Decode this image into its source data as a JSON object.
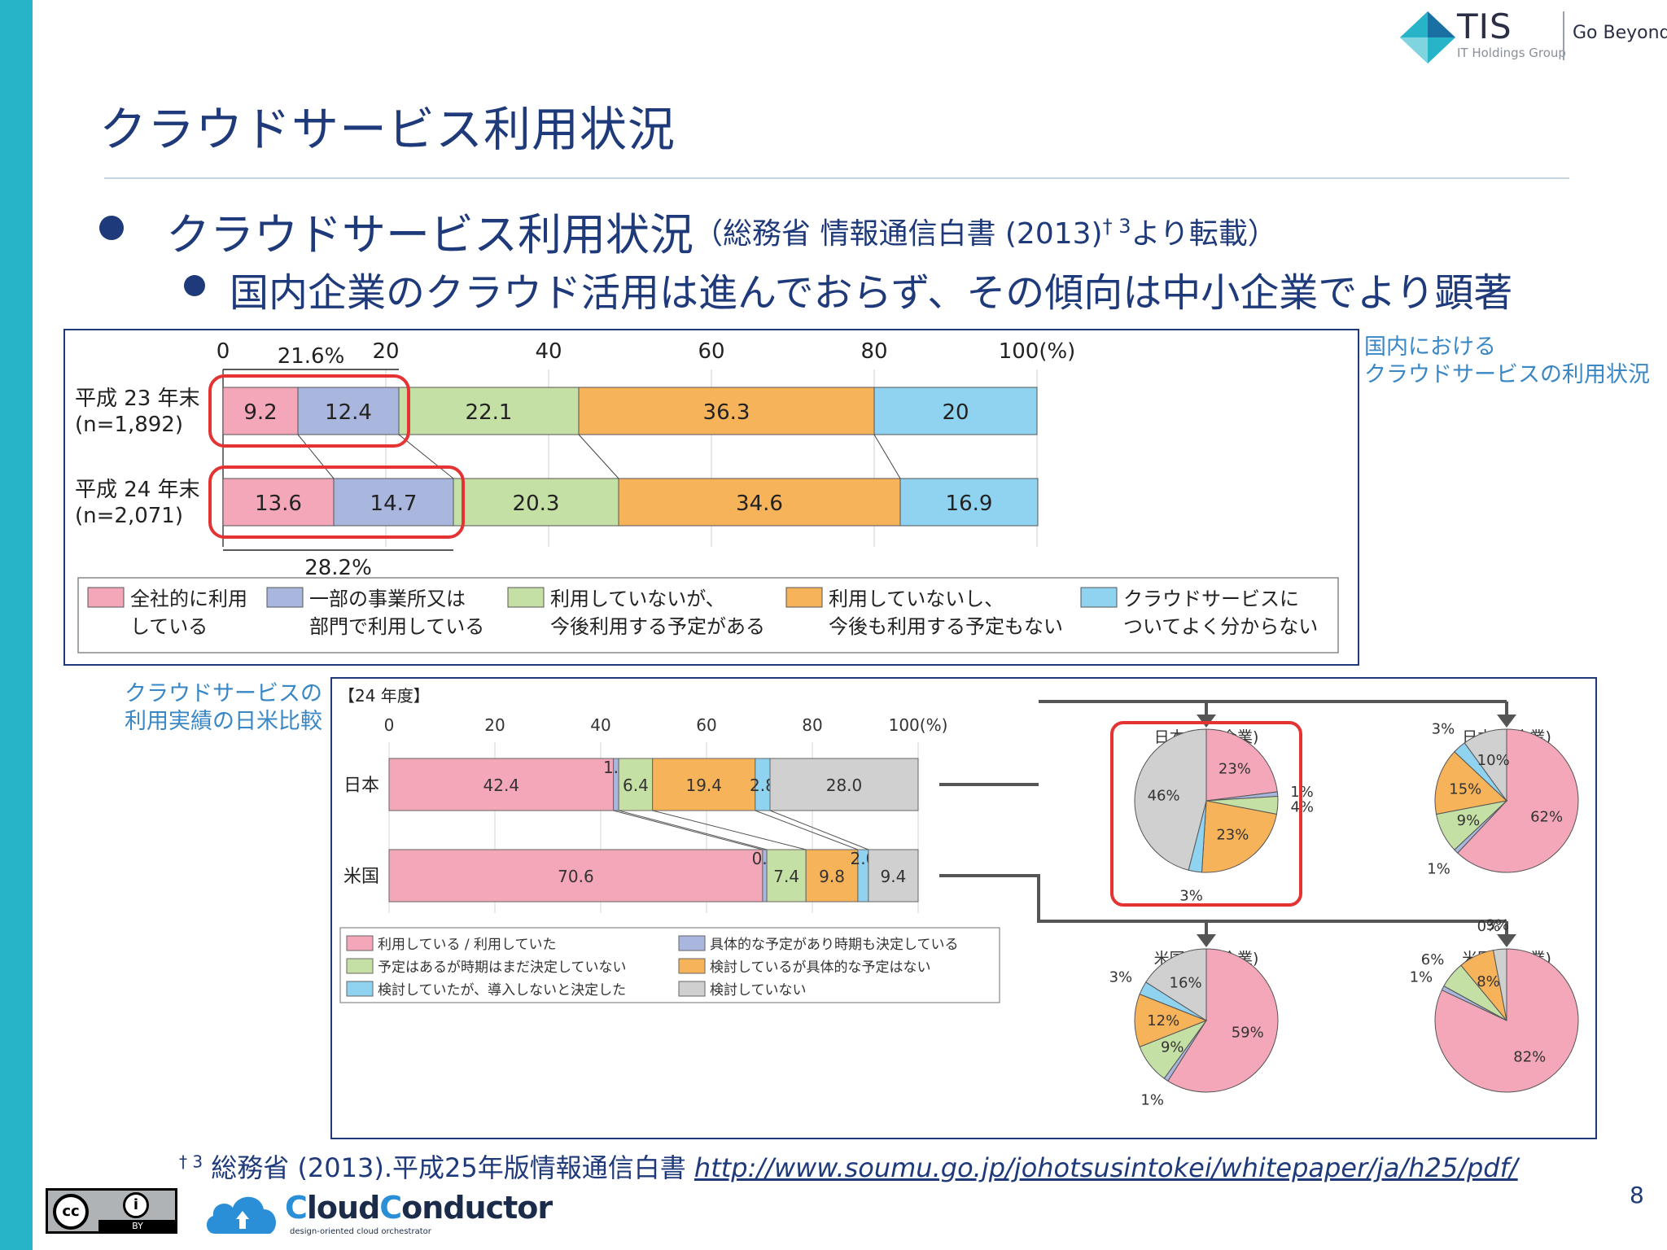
{
  "logo": {
    "brand": "TIS",
    "group": "IT Holdings Group",
    "tagline": "Go Beyond"
  },
  "title": "クラウドサービス利用状況",
  "bullets": {
    "level1": "クラウドサービス利用状況",
    "level1_source_pre": "（総務省 情報通信白書 (2013)",
    "level1_source_mark": "† 3",
    "level1_source_post": "より転載）",
    "level2": "国内企業のクラウド活用は進んでおらず、その傾向は中小企業でより顕著"
  },
  "captions": {
    "chart1": [
      "国内における",
      "クラウドサービスの利用状況"
    ],
    "chart2": [
      "クラウドサービスの",
      "利用実績の日米比較"
    ]
  },
  "footnote": {
    "mark": "† 3",
    "text": "総務省 (2013).平成25年版情報通信白書",
    "url": "http://www.soumu.go.jp/johotsusintokei/whitepaper/ja/h25/pdf/"
  },
  "page_number": "8",
  "cc_license": {
    "cc": "cc",
    "by": "BY",
    "person_icon": "person-icon"
  },
  "cloud_logo": {
    "brand_c1": "C",
    "brand_part1": "loud",
    "brand_c2": "C",
    "brand_part2": "onductor",
    "tagline": "design-oriented cloud orchestrator"
  },
  "chart_data": [
    {
      "type": "bar",
      "orientation": "horizontal-stacked",
      "categories": [
        [
          "平成 23 年末",
          "(n=1,892)"
        ],
        [
          "平成 24 年末",
          "(n=2,071)"
        ]
      ],
      "x_ticks": [
        "0",
        "20",
        "40",
        "60",
        "80",
        "100(%)"
      ],
      "xlim": [
        0,
        100
      ],
      "series": [
        {
          "name": [
            "全社的に利用",
            "している"
          ],
          "values": [
            9.2,
            13.6
          ],
          "color": "#f4a7b9"
        },
        {
          "name": [
            "一部の事業所又は",
            "部門で利用している"
          ],
          "values": [
            12.4,
            14.7
          ],
          "color": "#a9b6dd"
        },
        {
          "name": [
            "利用していないが、",
            "今後利用する予定がある"
          ],
          "values": [
            22.1,
            20.3
          ],
          "color": "#c5e0a5"
        },
        {
          "name": [
            "利用していないし、",
            "今後も利用する予定もない"
          ],
          "values": [
            36.3,
            34.6
          ],
          "color": "#f7b35a"
        },
        {
          "name": [
            "クラウドサービスに",
            "ついてよく分からない"
          ],
          "values": [
            20.0,
            16.9
          ],
          "color": "#8fd3f0"
        }
      ],
      "annotations": [
        "21.6%",
        "28.2%"
      ]
    },
    {
      "type": "bar",
      "orientation": "horizontal-stacked",
      "title": "【24 年度】",
      "categories": [
        "日本",
        "米国"
      ],
      "x_ticks": [
        "0",
        "20",
        "40",
        "60",
        "80",
        "100(%)"
      ],
      "xlim": [
        0,
        100
      ],
      "series": [
        {
          "name": "利用している / 利用していた",
          "values": [
            42.4,
            70.6
          ],
          "color": "#f4a7b9"
        },
        {
          "name": "具体的な予定があり時期も決定している",
          "values": [
            1.0,
            0.8
          ],
          "color": "#a9b6dd"
        },
        {
          "name": "予定はあるが時期はまだ決定していない",
          "values": [
            6.4,
            7.4
          ],
          "color": "#c5e0a5"
        },
        {
          "name": "検討しているが具体的な予定はない",
          "values": [
            19.4,
            9.8
          ],
          "color": "#f7b35a"
        },
        {
          "name": "検討していたが、導入しないと決定した",
          "values": [
            2.8,
            2.0
          ],
          "color": "#8fd3f0"
        },
        {
          "name": "検討していない",
          "values": [
            28.0,
            9.4
          ],
          "color": "#d0d0d0"
        }
      ],
      "value_labels": [
        [
          "42.4",
          "1.0",
          "6.4",
          "19.4",
          "2.8",
          "28.0"
        ],
        [
          "70.6",
          "0.8",
          "7.4",
          "9.8",
          "2.0",
          "9.4"
        ]
      ]
    },
    {
      "type": "pie",
      "title": "日本(中小企業)",
      "slices": [
        23,
        1,
        4,
        23,
        3,
        46
      ],
      "labels": [
        "23%",
        "1%",
        "4%",
        "23%",
        "3%",
        "46%"
      ],
      "colors": [
        "#f4a7b9",
        "#a9b6dd",
        "#c5e0a5",
        "#f7b35a",
        "#8fd3f0",
        "#d0d0d0"
      ]
    },
    {
      "type": "pie",
      "title": "日本(大企業)",
      "slices": [
        62,
        1,
        9,
        15,
        3,
        10
      ],
      "labels": [
        "62%",
        "1%",
        "9%",
        "15%",
        "3%",
        "10%"
      ],
      "colors": [
        "#f4a7b9",
        "#a9b6dd",
        "#c5e0a5",
        "#f7b35a",
        "#8fd3f0",
        "#d0d0d0"
      ]
    },
    {
      "type": "pie",
      "title": "米国(中小企業)",
      "slices": [
        59,
        1,
        9,
        12,
        3,
        16
      ],
      "labels": [
        "59%",
        "1%",
        "9%",
        "12%",
        "3%",
        "16%"
      ],
      "colors": [
        "#f4a7b9",
        "#a9b6dd",
        "#c5e0a5",
        "#f7b35a",
        "#8fd3f0",
        "#d0d0d0"
      ]
    },
    {
      "type": "pie",
      "title": "米国(大企業)",
      "slices": [
        82,
        1,
        6,
        8,
        0,
        3
      ],
      "labels": [
        "82%",
        "1%",
        "6%",
        "8%",
        "0%",
        "3%"
      ],
      "colors": [
        "#f4a7b9",
        "#a9b6dd",
        "#c5e0a5",
        "#f7b35a",
        "#8fd3f0",
        "#d0d0d0"
      ]
    }
  ]
}
